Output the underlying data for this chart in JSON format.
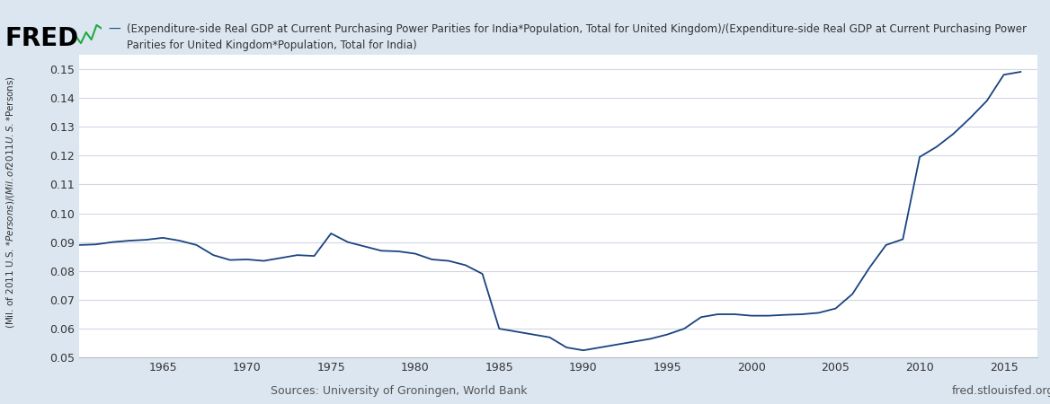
{
  "title_line1": "(Expenditure-side Real GDP at Current Purchasing Power Parities for India*Population, Total for United Kingdom)/(Expenditure-side Real GDP at Current Purchasing Power",
  "title_line2": "Parities for United Kingdom*Population, Total for India)",
  "ylabel": "(Mil. of 2011 U.S. $*Persons)/(Mil. of 2011 U.S. $*Persons)",
  "source_left": "Sources: University of Groningen, World Bank",
  "source_right": "fred.stlouisfed.org",
  "background_color": "#dce6f1",
  "plot_background": "#ffffff",
  "line_color": "#1a4480",
  "ylim": [
    0.05,
    0.155
  ],
  "yticks": [
    0.05,
    0.06,
    0.07,
    0.08,
    0.09,
    0.1,
    0.11,
    0.12,
    0.13,
    0.14,
    0.15
  ],
  "xticks": [
    1965,
    1970,
    1975,
    1980,
    1985,
    1990,
    1995,
    2000,
    2005,
    2010,
    2015
  ],
  "xlim": [
    1960,
    2017
  ],
  "years": [
    1960,
    1961,
    1962,
    1963,
    1964,
    1965,
    1966,
    1967,
    1968,
    1969,
    1970,
    1971,
    1972,
    1973,
    1974,
    1975,
    1976,
    1977,
    1978,
    1979,
    1980,
    1981,
    1982,
    1983,
    1984,
    1985,
    1986,
    1987,
    1988,
    1989,
    1990,
    1991,
    1992,
    1993,
    1994,
    1995,
    1996,
    1997,
    1998,
    1999,
    2000,
    2001,
    2002,
    2003,
    2004,
    2005,
    2006,
    2007,
    2008,
    2009,
    2010,
    2011,
    2012,
    2013,
    2014,
    2015,
    2016
  ],
  "values": [
    0.089,
    0.0892,
    0.09,
    0.0905,
    0.0908,
    0.0915,
    0.0905,
    0.089,
    0.0855,
    0.0838,
    0.084,
    0.0835,
    0.0845,
    0.0855,
    0.0852,
    0.093,
    0.09,
    0.0885,
    0.087,
    0.0868,
    0.086,
    0.084,
    0.0835,
    0.082,
    0.079,
    0.06,
    0.059,
    0.058,
    0.057,
    0.0535,
    0.0525,
    0.0535,
    0.0545,
    0.0555,
    0.0565,
    0.058,
    0.06,
    0.064,
    0.065,
    0.065,
    0.0645,
    0.0645,
    0.0648,
    0.065,
    0.0655,
    0.067,
    0.072,
    0.081,
    0.089,
    0.091,
    0.1195,
    0.123,
    0.1275,
    0.133,
    0.139,
    0.148,
    0.149
  ]
}
